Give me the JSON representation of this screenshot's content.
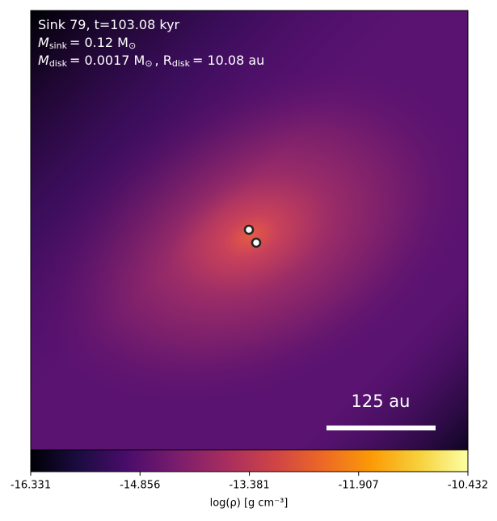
{
  "chart_data": {
    "type": "density-map",
    "annotations": [
      [
        "Sink 79, t=103.08 kyr"
      ],
      [
        "M",
        "sink",
        "= 0.12 M",
        "⊙"
      ],
      [
        "M",
        "disk",
        "= 0.0017 M",
        "⊙",
        ", R",
        "disk",
        "= 10.08 au"
      ]
    ],
    "scale_bar_label": "125 au",
    "colorbar_label": "log(ρ) [g cm⁻³]",
    "clim": [
      -16.331,
      -10.432
    ],
    "cticks": [
      -16.331,
      -14.856,
      -13.381,
      -11.907,
      -10.432
    ]
  }
}
